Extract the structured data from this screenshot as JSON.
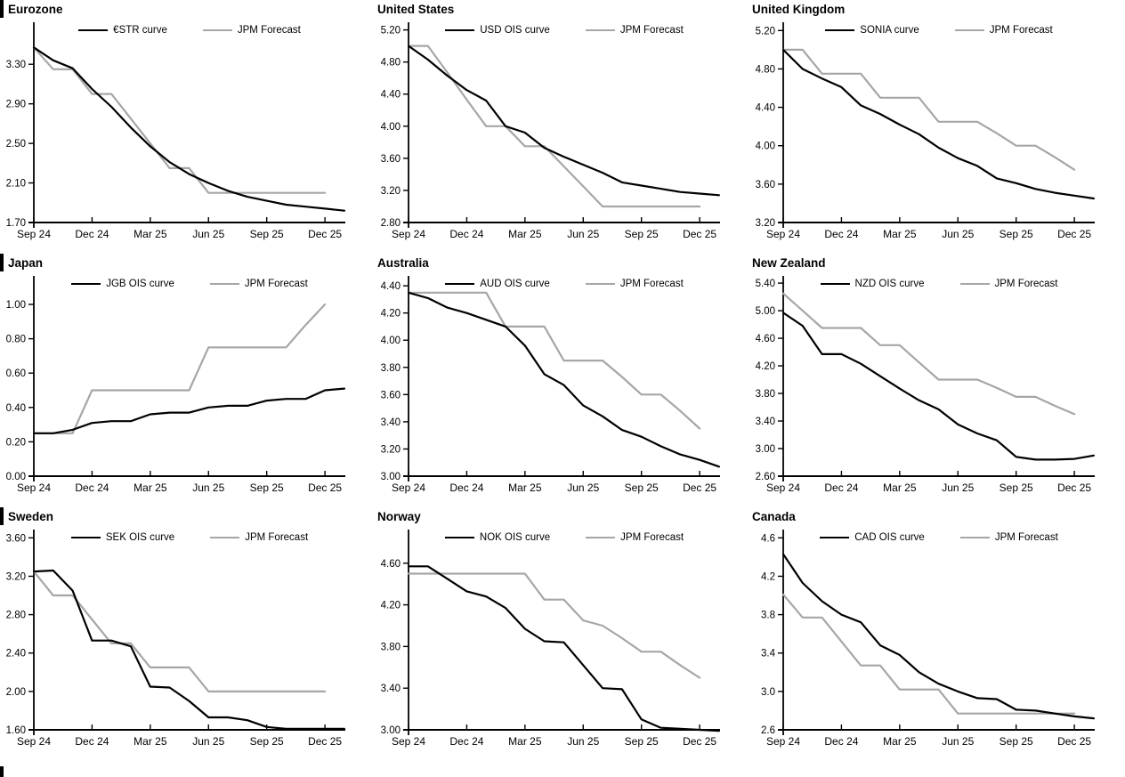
{
  "page": {
    "background": "#ffffff",
    "description_text": "Grid of nine policy-rate charts comparing market OIS curves with JPM forecasts"
  },
  "chart_data": {
    "type": "line",
    "x": [
      "Sep 24",
      "Oct 24",
      "Nov 24",
      "Dec 24",
      "Jan 25",
      "Feb 25",
      "Mar 25",
      "Apr 25",
      "May 25",
      "Jun 25",
      "Jul 25",
      "Aug 25",
      "Sep 25",
      "Oct 25",
      "Nov 25",
      "Dec 25",
      "Jan 26"
    ],
    "x_tick_labels": [
      "Sep 24",
      "Dec 24",
      "Mar 25",
      "Jun 25",
      "Sep 25",
      "Dec 25"
    ],
    "x_tick_positions": [
      0,
      3,
      6,
      9,
      12,
      15
    ],
    "x_extent_months": 16.05,
    "grid": "off",
    "legend_position": "top-center",
    "colors": {
      "market_curve": "#000000",
      "jpm_forecast": "#a6a6a6",
      "axis": "#000000"
    },
    "panels": [
      {
        "title": "Eurozone",
        "ylim": [
          1.7,
          3.68
        ],
        "yticks": [
          1.7,
          2.1,
          2.5,
          2.9,
          3.3
        ],
        "ytick_decimals": 2,
        "series": [
          {
            "name": "€STR curve",
            "color": "#000000",
            "values": [
              3.47,
              3.34,
              3.26,
              3.05,
              2.87,
              2.66,
              2.47,
              2.31,
              2.19,
              2.1,
              2.02,
              1.96,
              1.92,
              1.88,
              1.86,
              1.84,
              1.82
            ]
          },
          {
            "name": "JPM Forecast",
            "color": "#a6a6a6",
            "values": [
              3.47,
              3.25,
              3.25,
              3.0,
              3.0,
              2.75,
              2.5,
              2.25,
              2.25,
              2.0,
              2.0,
              2.0,
              2.0,
              2.0,
              2.0,
              2.0
            ]
          }
        ]
      },
      {
        "title": "United States",
        "ylim": [
          2.8,
          5.24
        ],
        "yticks": [
          2.8,
          3.2,
          3.6,
          4.0,
          4.4,
          4.8,
          5.2
        ],
        "ytick_decimals": 2,
        "series": [
          {
            "name": "USD OIS curve",
            "color": "#000000",
            "values": [
              5.0,
              4.83,
              4.63,
              4.45,
              4.32,
              4.0,
              3.92,
              3.73,
              3.62,
              3.52,
              3.42,
              3.3,
              3.26,
              3.22,
              3.18,
              3.16,
              3.14
            ]
          },
          {
            "name": "JPM Forecast",
            "color": "#a6a6a6",
            "values": [
              5.0,
              5.0,
              4.67,
              4.33,
              4.0,
              4.0,
              3.75,
              3.75,
              3.5,
              3.25,
              3.0,
              3.0,
              3.0,
              3.0,
              3.0,
              3.0
            ]
          }
        ]
      },
      {
        "title": "United Kingdom",
        "ylim": [
          3.2,
          5.24
        ],
        "yticks": [
          3.2,
          3.6,
          4.0,
          4.4,
          4.8,
          5.2
        ],
        "ytick_decimals": 2,
        "series": [
          {
            "name": "SONIA curve",
            "color": "#000000",
            "values": [
              5.0,
              4.8,
              4.7,
              4.61,
              4.42,
              4.33,
              4.22,
              4.12,
              3.98,
              3.87,
              3.79,
              3.66,
              3.61,
              3.55,
              3.51,
              3.48,
              3.45
            ]
          },
          {
            "name": "JPM Forecast",
            "color": "#a6a6a6",
            "values": [
              5.0,
              5.0,
              4.75,
              4.75,
              4.75,
              4.5,
              4.5,
              4.5,
              4.25,
              4.25,
              4.25,
              4.13,
              4.0,
              4.0,
              3.88,
              3.75
            ]
          }
        ]
      },
      {
        "title": "Japan",
        "ylim": [
          0.0,
          1.14
        ],
        "yticks": [
          0.0,
          0.2,
          0.4,
          0.6,
          0.8,
          1.0
        ],
        "ytick_decimals": 2,
        "series": [
          {
            "name": "JGB OIS curve",
            "color": "#000000",
            "values": [
              0.25,
              0.25,
              0.27,
              0.31,
              0.32,
              0.32,
              0.36,
              0.37,
              0.37,
              0.4,
              0.41,
              0.41,
              0.44,
              0.45,
              0.45,
              0.5,
              0.51
            ]
          },
          {
            "name": "JPM Forecast",
            "color": "#a6a6a6",
            "values": [
              0.25,
              0.25,
              0.25,
              0.5,
              0.5,
              0.5,
              0.5,
              0.5,
              0.5,
              0.75,
              0.75,
              0.75,
              0.75,
              0.75,
              0.88,
              1.0
            ]
          }
        ]
      },
      {
        "title": "Australia",
        "ylim": [
          3.0,
          4.44
        ],
        "yticks": [
          3.0,
          3.2,
          3.4,
          3.6,
          3.8,
          4.0,
          4.2,
          4.4
        ],
        "ytick_decimals": 2,
        "series": [
          {
            "name": "AUD OIS curve",
            "color": "#000000",
            "values": [
              4.35,
              4.31,
              4.24,
              4.2,
              4.15,
              4.1,
              3.96,
              3.75,
              3.67,
              3.52,
              3.44,
              3.34,
              3.29,
              3.22,
              3.16,
              3.12,
              3.07
            ]
          },
          {
            "name": "JPM Forecast",
            "color": "#a6a6a6",
            "values": [
              4.35,
              4.35,
              4.35,
              4.35,
              4.35,
              4.1,
              4.1,
              4.1,
              3.85,
              3.85,
              3.85,
              3.73,
              3.6,
              3.6,
              3.48,
              3.35
            ]
          }
        ]
      },
      {
        "title": "New Zealand",
        "ylim": [
          2.6,
          5.44
        ],
        "yticks": [
          2.6,
          3.0,
          3.4,
          3.8,
          4.2,
          4.6,
          5.0,
          5.4
        ],
        "ytick_decimals": 2,
        "series": [
          {
            "name": "NZD OIS curve",
            "color": "#000000",
            "values": [
              4.97,
              4.78,
              4.37,
              4.37,
              4.23,
              4.05,
              3.87,
              3.7,
              3.57,
              3.35,
              3.22,
              3.12,
              2.88,
              2.84,
              2.84,
              2.85,
              2.9
            ]
          },
          {
            "name": "JPM Forecast",
            "color": "#a6a6a6",
            "values": [
              5.25,
              5.0,
              4.75,
              4.75,
              4.75,
              4.5,
              4.5,
              4.25,
              4.0,
              4.0,
              4.0,
              3.88,
              3.75,
              3.75,
              3.62,
              3.5
            ]
          }
        ]
      },
      {
        "title": "Sweden",
        "ylim": [
          1.6,
          3.64
        ],
        "yticks": [
          1.6,
          2.0,
          2.4,
          2.8,
          3.2,
          3.6
        ],
        "ytick_decimals": 2,
        "series": [
          {
            "name": "SEK OIS curve",
            "color": "#000000",
            "values": [
              3.25,
              3.26,
              3.05,
              2.53,
              2.53,
              2.47,
              2.05,
              2.04,
              1.9,
              1.73,
              1.73,
              1.7,
              1.63,
              1.61,
              1.61,
              1.61,
              1.61
            ]
          },
          {
            "name": "JPM Forecast",
            "color": "#a6a6a6",
            "values": [
              3.25,
              3.0,
              3.0,
              2.75,
              2.5,
              2.5,
              2.25,
              2.25,
              2.25,
              2.0,
              2.0,
              2.0,
              2.0,
              2.0,
              2.0,
              2.0
            ]
          }
        ]
      },
      {
        "title": "Norway",
        "ylim": [
          3.0,
          4.88
        ],
        "yticks": [
          3.0,
          3.4,
          3.8,
          4.2,
          4.6
        ],
        "ytick_decimals": 2,
        "series": [
          {
            "name": "NOK OIS curve",
            "color": "#000000",
            "values": [
              4.57,
              4.57,
              4.45,
              4.33,
              4.28,
              4.17,
              3.97,
              3.85,
              3.84,
              3.62,
              3.4,
              3.39,
              3.1,
              3.02,
              3.01,
              3.0,
              2.99
            ]
          },
          {
            "name": "JPM Forecast",
            "color": "#a6a6a6",
            "values": [
              4.5,
              4.5,
              4.5,
              4.5,
              4.5,
              4.5,
              4.5,
              4.25,
              4.25,
              4.05,
              4.0,
              3.88,
              3.75,
              3.75,
              3.62,
              3.5
            ]
          }
        ]
      },
      {
        "title": "Canada",
        "ylim": [
          2.6,
          4.64
        ],
        "yticks": [
          2.6,
          3.0,
          3.4,
          3.8,
          4.2,
          4.6
        ],
        "ytick_decimals": 1,
        "series": [
          {
            "name": "CAD OIS curve",
            "color": "#000000",
            "values": [
              4.43,
              4.13,
              3.94,
              3.8,
              3.72,
              3.48,
              3.38,
              3.2,
              3.08,
              3.0,
              2.93,
              2.92,
              2.81,
              2.8,
              2.77,
              2.74,
              2.72
            ]
          },
          {
            "name": "JPM Forecast",
            "color": "#a6a6a6",
            "values": [
              4.01,
              3.77,
              3.77,
              3.52,
              3.27,
              3.27,
              3.02,
              3.02,
              3.02,
              2.77,
              2.77,
              2.77,
              2.77,
              2.77,
              2.77,
              2.77
            ]
          }
        ]
      }
    ]
  }
}
